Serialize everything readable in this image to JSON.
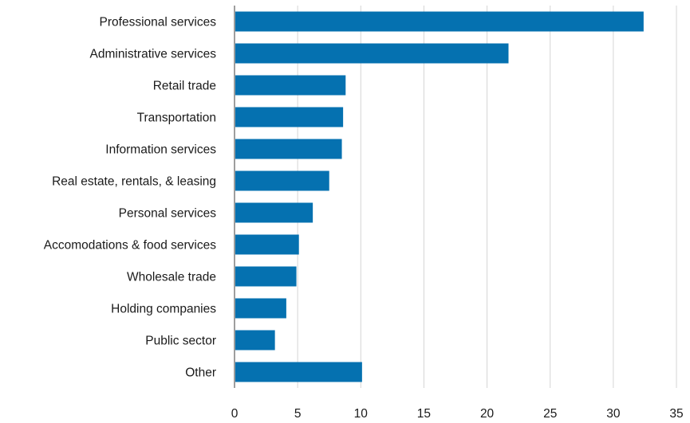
{
  "chart_data": {
    "type": "bar",
    "orientation": "horizontal",
    "title": "",
    "xlabel": "",
    "ylabel": "",
    "categories": [
      "Professional services",
      "Administrative services",
      "Retail trade",
      "Transportation",
      "Information services",
      "Real estate, rentals, & leasing",
      "Personal services",
      "Accomodations & food services",
      "Wholesale trade",
      "Holding companies",
      "Public sector",
      "Other"
    ],
    "values": [
      32.4,
      21.7,
      8.8,
      8.6,
      8.5,
      7.5,
      6.2,
      5.1,
      4.9,
      4.1,
      3.2,
      10.1
    ],
    "xlim": [
      0,
      35
    ],
    "xticks": [
      "0",
      "5",
      "10",
      "15",
      "20",
      "25",
      "30",
      "35"
    ],
    "grid": "vertical",
    "legend": "none",
    "bar_color": "#0571b0"
  }
}
